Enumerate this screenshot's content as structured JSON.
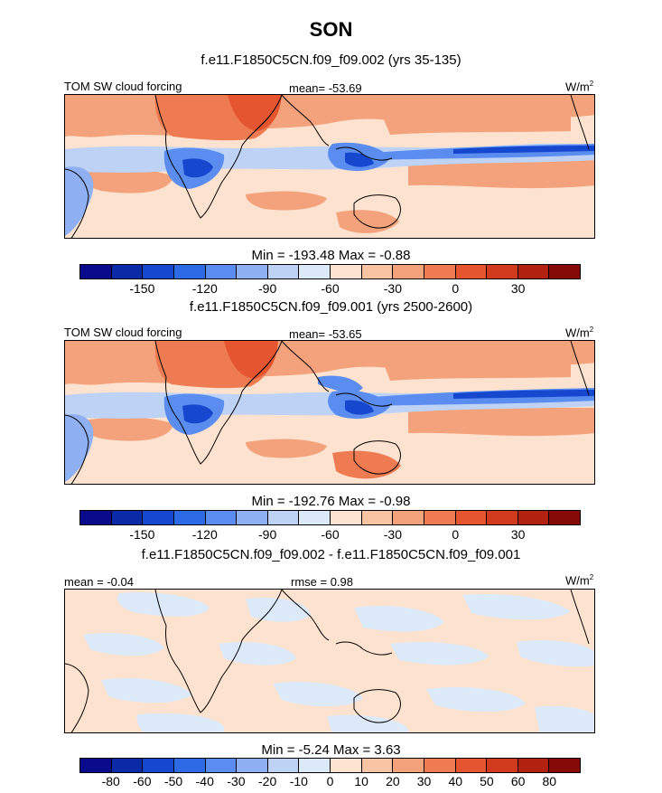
{
  "title": "SON",
  "panels": [
    {
      "subtitle": "f.e11.F1850C5CN.f09_f09.002 (yrs 35-135)",
      "left_label": "TOM SW cloud forcing",
      "center_label": "mean= -53.69",
      "unit_label": "W/m",
      "unit_sup": "2",
      "minmax": "Min = -193.48 Max =  -0.88",
      "colorbar": {
        "colors": [
          "#0a0a8c",
          "#0b2aa8",
          "#1547cf",
          "#2d6be6",
          "#5a8def",
          "#8fb0f2",
          "#bdd2f5",
          "#dce9f9",
          "#fde3cf",
          "#f9c4a4",
          "#f4a27b",
          "#ee7b52",
          "#e5552f",
          "#d23a1d",
          "#b12211",
          "#850a08"
        ],
        "ticks": [
          "-150",
          "-120",
          "-90",
          "-60",
          "-30",
          "0",
          "30"
        ]
      }
    },
    {
      "subtitle": "f.e11.F1850C5CN.f09_f09.001 (yrs 2500-2600)",
      "left_label": "TOM SW cloud forcing",
      "center_label": "mean= -53.65",
      "unit_label": "W/m",
      "unit_sup": "2",
      "minmax": "Min = -192.76 Max =  -0.98",
      "colorbar": {
        "colors": [
          "#0a0a8c",
          "#0b2aa8",
          "#1547cf",
          "#2d6be6",
          "#5a8def",
          "#8fb0f2",
          "#bdd2f5",
          "#dce9f9",
          "#fde3cf",
          "#f9c4a4",
          "#f4a27b",
          "#ee7b52",
          "#e5552f",
          "#d23a1d",
          "#b12211",
          "#850a08"
        ],
        "ticks": [
          "-150",
          "-120",
          "-90",
          "-60",
          "-30",
          "0",
          "30"
        ]
      }
    },
    {
      "subtitle": "f.e11.F1850C5CN.f09_f09.002 - f.e11.F1850C5CN.f09_f09.001",
      "left_label": "mean =  -0.04",
      "center_label": "rmse =  0.98",
      "unit_label": "W/m",
      "unit_sup": "2",
      "minmax": "Min =  -5.24 Max =   3.63",
      "colorbar": {
        "colors": [
          "#0a0a8c",
          "#0b2aa8",
          "#1547cf",
          "#2d6be6",
          "#5a8def",
          "#8fb0f2",
          "#bdd2f5",
          "#dce9f9",
          "#fde3cf",
          "#f9c4a4",
          "#f4a27b",
          "#ee7b52",
          "#e5552f",
          "#d23a1d",
          "#b12211",
          "#850a08"
        ],
        "ticks": [
          "-80",
          "-60",
          "-50",
          "-40",
          "-30",
          "-20",
          "-10",
          "0",
          "10",
          "20",
          "30",
          "40",
          "50",
          "60",
          "80"
        ]
      }
    }
  ]
}
